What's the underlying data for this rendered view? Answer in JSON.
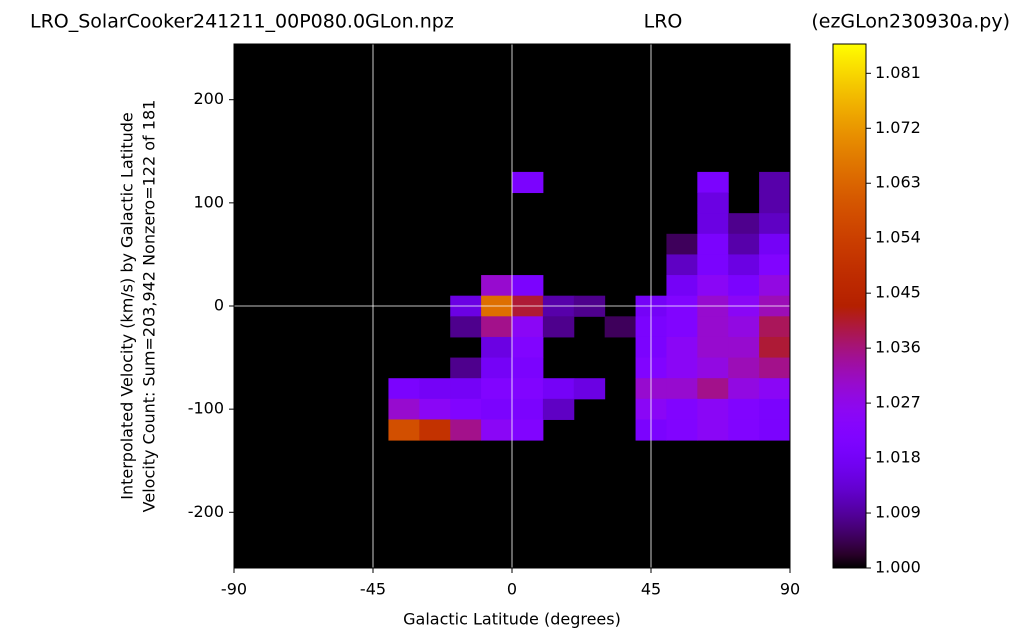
{
  "chart_data": {
    "type": "heatmap",
    "title_left": "LRO_SolarCooker241211_00P080.0GLon.npz",
    "title_center": "LRO",
    "title_right": "(ezGLon230930a.py)",
    "xlabel": "Galactic Latitude (degrees)",
    "ylabel": [
      "Interpolated Velocity (km/s) by Galactic Latitude",
      "Velocity Count: Sum=203,942 Nonzero=122 of 181"
    ],
    "colormap": "gnuplot",
    "x": [
      -85,
      -75,
      -65,
      -55,
      -45,
      -35,
      -25,
      -15,
      -5,
      5,
      15,
      25,
      35,
      45,
      55,
      65,
      75,
      85
    ],
    "y": [
      240,
      220,
      200,
      180,
      160,
      140,
      120,
      100,
      80,
      60,
      40,
      20,
      0,
      -20,
      -40,
      -60,
      -80,
      -100,
      -120,
      -140,
      -160,
      -180,
      -200,
      -220,
      -240
    ],
    "z": [
      [
        null,
        null,
        null,
        null,
        null,
        null,
        null,
        null,
        null,
        null,
        null,
        null,
        null,
        null,
        null,
        null,
        null,
        null
      ],
      [
        null,
        null,
        null,
        null,
        null,
        null,
        null,
        null,
        null,
        null,
        null,
        null,
        null,
        null,
        null,
        null,
        null,
        null
      ],
      [
        null,
        null,
        null,
        null,
        null,
        null,
        null,
        null,
        null,
        null,
        null,
        null,
        null,
        null,
        null,
        null,
        null,
        null
      ],
      [
        null,
        null,
        null,
        null,
        null,
        null,
        null,
        null,
        null,
        null,
        null,
        null,
        null,
        null,
        null,
        null,
        null,
        null
      ],
      [
        null,
        null,
        null,
        null,
        null,
        null,
        null,
        null,
        null,
        null,
        null,
        null,
        null,
        null,
        null,
        null,
        null,
        null
      ],
      [
        null,
        null,
        null,
        null,
        null,
        null,
        null,
        null,
        null,
        null,
        null,
        null,
        null,
        null,
        null,
        null,
        null,
        null
      ],
      [
        null,
        null,
        null,
        null,
        null,
        null,
        null,
        null,
        null,
        1.02,
        null,
        null,
        null,
        null,
        null,
        1.02,
        null,
        1.01
      ],
      [
        null,
        null,
        null,
        null,
        null,
        null,
        null,
        null,
        null,
        null,
        null,
        null,
        null,
        null,
        null,
        1.015,
        null,
        1.01
      ],
      [
        null,
        null,
        null,
        null,
        null,
        null,
        null,
        null,
        null,
        null,
        null,
        null,
        null,
        null,
        null,
        1.015,
        1.008,
        1.012
      ],
      [
        null,
        null,
        null,
        null,
        null,
        null,
        null,
        null,
        null,
        null,
        null,
        null,
        null,
        null,
        1.005,
        1.02,
        1.01,
        1.018
      ],
      [
        null,
        null,
        null,
        null,
        null,
        null,
        null,
        null,
        null,
        null,
        null,
        null,
        null,
        null,
        1.012,
        1.02,
        1.015,
        1.022
      ],
      [
        null,
        null,
        null,
        null,
        null,
        null,
        null,
        null,
        1.03,
        1.02,
        null,
        null,
        null,
        null,
        1.018,
        1.025,
        1.02,
        1.028
      ],
      [
        null,
        null,
        null,
        null,
        null,
        null,
        null,
        1.015,
        1.065,
        1.04,
        1.01,
        1.008,
        null,
        1.018,
        1.022,
        1.03,
        1.025,
        1.032
      ],
      [
        null,
        null,
        null,
        null,
        null,
        null,
        null,
        1.008,
        1.035,
        1.025,
        1.008,
        null,
        1.005,
        1.02,
        1.022,
        1.03,
        1.028,
        1.038
      ],
      [
        null,
        null,
        null,
        null,
        null,
        null,
        null,
        null,
        1.015,
        1.022,
        null,
        null,
        null,
        1.02,
        1.025,
        1.03,
        1.03,
        1.04
      ],
      [
        null,
        null,
        null,
        null,
        null,
        null,
        null,
        1.008,
        1.018,
        1.02,
        null,
        null,
        null,
        1.022,
        1.025,
        1.028,
        1.032,
        1.035
      ],
      [
        null,
        null,
        null,
        null,
        null,
        1.02,
        1.018,
        1.018,
        1.022,
        1.022,
        1.018,
        1.015,
        null,
        1.03,
        1.03,
        1.035,
        1.028,
        1.025
      ],
      [
        null,
        null,
        null,
        null,
        null,
        1.03,
        1.025,
        1.022,
        1.02,
        1.02,
        1.012,
        null,
        null,
        1.025,
        1.022,
        1.025,
        1.022,
        1.02
      ],
      [
        null,
        null,
        null,
        null,
        null,
        1.058,
        1.05,
        1.035,
        1.025,
        1.022,
        null,
        null,
        null,
        1.02,
        1.022,
        1.025,
        1.022,
        1.02
      ],
      [
        null,
        null,
        null,
        null,
        null,
        null,
        null,
        null,
        null,
        null,
        null,
        null,
        null,
        null,
        null,
        null,
        null,
        null
      ],
      [
        null,
        null,
        null,
        null,
        null,
        null,
        null,
        null,
        null,
        null,
        null,
        null,
        null,
        null,
        null,
        null,
        null,
        null
      ],
      [
        null,
        null,
        null,
        null,
        null,
        null,
        null,
        null,
        null,
        null,
        null,
        null,
        null,
        null,
        null,
        null,
        null,
        null
      ],
      [
        null,
        null,
        null,
        null,
        null,
        null,
        null,
        null,
        null,
        null,
        null,
        null,
        null,
        null,
        null,
        null,
        null,
        null
      ],
      [
        null,
        null,
        null,
        null,
        null,
        null,
        null,
        null,
        null,
        null,
        null,
        null,
        null,
        null,
        null,
        null,
        null,
        null
      ],
      [
        null,
        null,
        null,
        null,
        null,
        null,
        null,
        null,
        null,
        null,
        null,
        null,
        null,
        null,
        null,
        null,
        null,
        null
      ]
    ],
    "xlim": [
      -90,
      90
    ],
    "xticks": [
      -90,
      -45,
      0,
      45,
      90
    ],
    "ylim": [
      -254,
      254
    ],
    "yticks": [
      -200,
      -100,
      0,
      100,
      200
    ],
    "grid_x": [
      -45,
      0,
      45
    ],
    "grid_y": [
      0
    ],
    "clim": [
      1.0,
      1.0858
    ],
    "cticks": [
      {
        "value": 1.0,
        "label": "1.000"
      },
      1.009,
      1.018,
      1.027,
      1.036,
      1.045,
      1.054,
      1.063,
      1.072,
      1.081
    ]
  }
}
